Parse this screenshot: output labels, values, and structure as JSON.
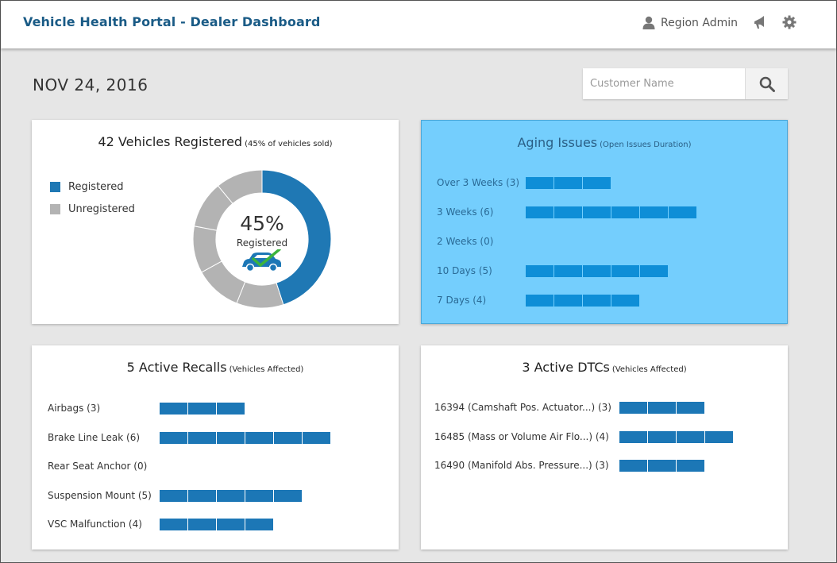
{
  "header": {
    "title": "Vehicle Health Portal - Dealer Dashboard",
    "user": "Region Admin",
    "icons": [
      "user-icon",
      "megaphone-icon",
      "gear-icon"
    ]
  },
  "date": "NOV 24, 2016",
  "search": {
    "placeholder": "Customer Name"
  },
  "colors": {
    "brand": "#1a5b86",
    "bar": "#1c77b6",
    "registered": "#1f78b4",
    "unregistered": "#b3b3b3",
    "aging_bg": "#74cefd",
    "aging_bar": "#0e8ed7"
  },
  "registered": {
    "title": "42 Vehicles Registered",
    "subtitle": "(45% of vehicles sold)",
    "legend": [
      {
        "label": "Registered",
        "color": "#1f78b4"
      },
      {
        "label": "Unregistered",
        "color": "#b3b3b3"
      }
    ],
    "percent_text": "45%",
    "percent_label": "Registered",
    "percent_value": 45
  },
  "aging": {
    "title": "Aging Issues",
    "subtitle": "(Open Issues Duration)",
    "rows": [
      {
        "label": "Over 3 Weeks (3)",
        "count": 3
      },
      {
        "label": "3 Weeks (6)",
        "count": 6
      },
      {
        "label": "2 Weeks (0)",
        "count": 0
      },
      {
        "label": "10 Days (5)",
        "count": 5
      },
      {
        "label": "7 Days (4)",
        "count": 4
      }
    ]
  },
  "recalls": {
    "title": "5 Active Recalls",
    "subtitle": "(Vehicles Affected)",
    "rows": [
      {
        "label": "Airbags (3)",
        "count": 3
      },
      {
        "label": "Brake Line Leak (6)",
        "count": 6
      },
      {
        "label": "Rear Seat Anchor (0)",
        "count": 0
      },
      {
        "label": "Suspension Mount (5)",
        "count": 5
      },
      {
        "label": "VSC Malfunction (4)",
        "count": 4
      }
    ]
  },
  "dtcs": {
    "title": "3 Active DTCs",
    "subtitle": "(Vehicles Affected)",
    "rows": [
      {
        "label": "16394 (Camshaft Pos. Actuator...) (3)",
        "count": 3
      },
      {
        "label": "16485 (Mass or Volume Air Flo...) (4)",
        "count": 4
      },
      {
        "label": "16490 (Manifold Abs. Pressure...) (3)",
        "count": 3
      }
    ]
  }
}
